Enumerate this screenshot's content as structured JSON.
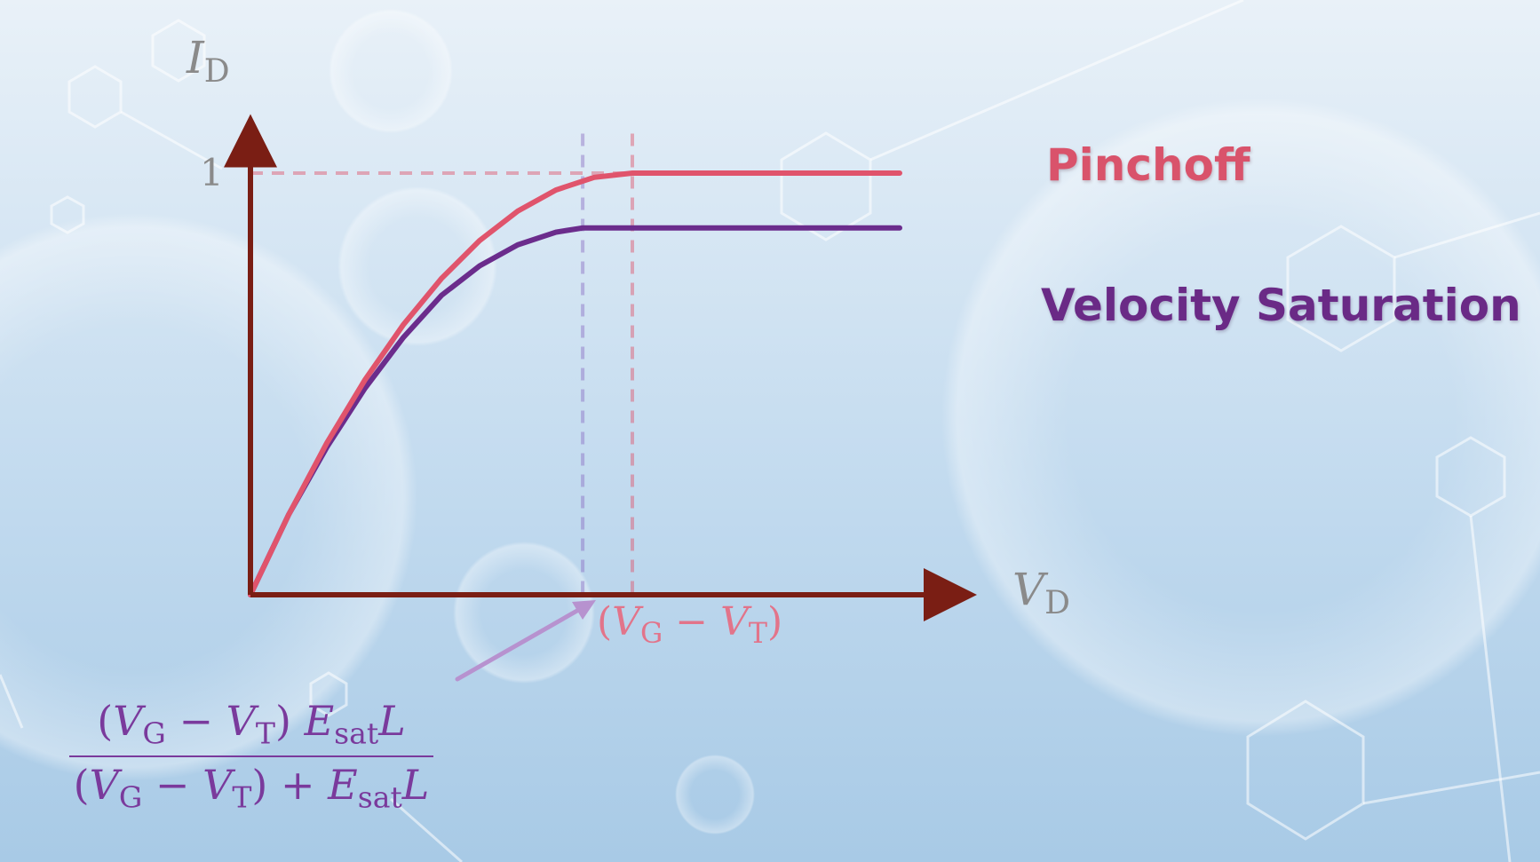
{
  "axes": {
    "y_var": "I",
    "y_sub": "D",
    "x_var": "V",
    "x_sub": "D",
    "y_tick": "1"
  },
  "annotation": {
    "open": "(",
    "v1": "V",
    "s1": "G",
    "minus": " − ",
    "v2": "V",
    "s2": "T",
    "close": ")"
  },
  "legend": {
    "pinchoff": "Pinchoff",
    "velocity_saturation": "Velocity Saturation"
  },
  "formula": {
    "numerator": {
      "open": "(",
      "v1": "V",
      "s1": "G",
      "minus": " − ",
      "v2": "V",
      "s2": "T",
      "close": ") ",
      "e": "E",
      "esub": "sat",
      "l": "L"
    },
    "denominator": {
      "open": "(",
      "v1": "V",
      "s1": "G",
      "minus": " − ",
      "v2": "V",
      "s2": "T",
      "close": ")",
      "plus": " + ",
      "e": "E",
      "esub": "sat",
      "l": "L"
    }
  },
  "colors": {
    "axis": "#7a1e14",
    "pinchoff": "#e0546c",
    "velocity_saturation": "#6b2c8c",
    "background_top": "#e7f0f7",
    "background_bottom": "#a9cbe6"
  },
  "chart_data": {
    "type": "line",
    "title": "",
    "xlabel": "V_D",
    "ylabel": "I_D",
    "xlim": [
      0,
      1.8
    ],
    "ylim": [
      0,
      1.1
    ],
    "yticks": [
      1
    ],
    "series": [
      {
        "name": "Pinchoff",
        "saturation_x": 1.0,
        "plateau": 1.0,
        "x": [
          0,
          0.1,
          0.2,
          0.3,
          0.4,
          0.5,
          0.6,
          0.7,
          0.8,
          0.9,
          1.0,
          1.2,
          1.4,
          1.6,
          1.7
        ],
        "y": [
          0,
          0.19,
          0.36,
          0.51,
          0.64,
          0.75,
          0.84,
          0.91,
          0.96,
          0.99,
          1.0,
          1.0,
          1.0,
          1.0,
          1.0
        ]
      },
      {
        "name": "Velocity Saturation",
        "saturation_x": 0.87,
        "plateau": 0.87,
        "x": [
          0,
          0.1,
          0.2,
          0.3,
          0.4,
          0.5,
          0.6,
          0.7,
          0.8,
          0.87,
          1.0,
          1.2,
          1.4,
          1.6,
          1.7
        ],
        "y": [
          0,
          0.19,
          0.35,
          0.49,
          0.61,
          0.71,
          0.78,
          0.83,
          0.86,
          0.87,
          0.87,
          0.87,
          0.87,
          0.87,
          0.87
        ]
      }
    ]
  }
}
